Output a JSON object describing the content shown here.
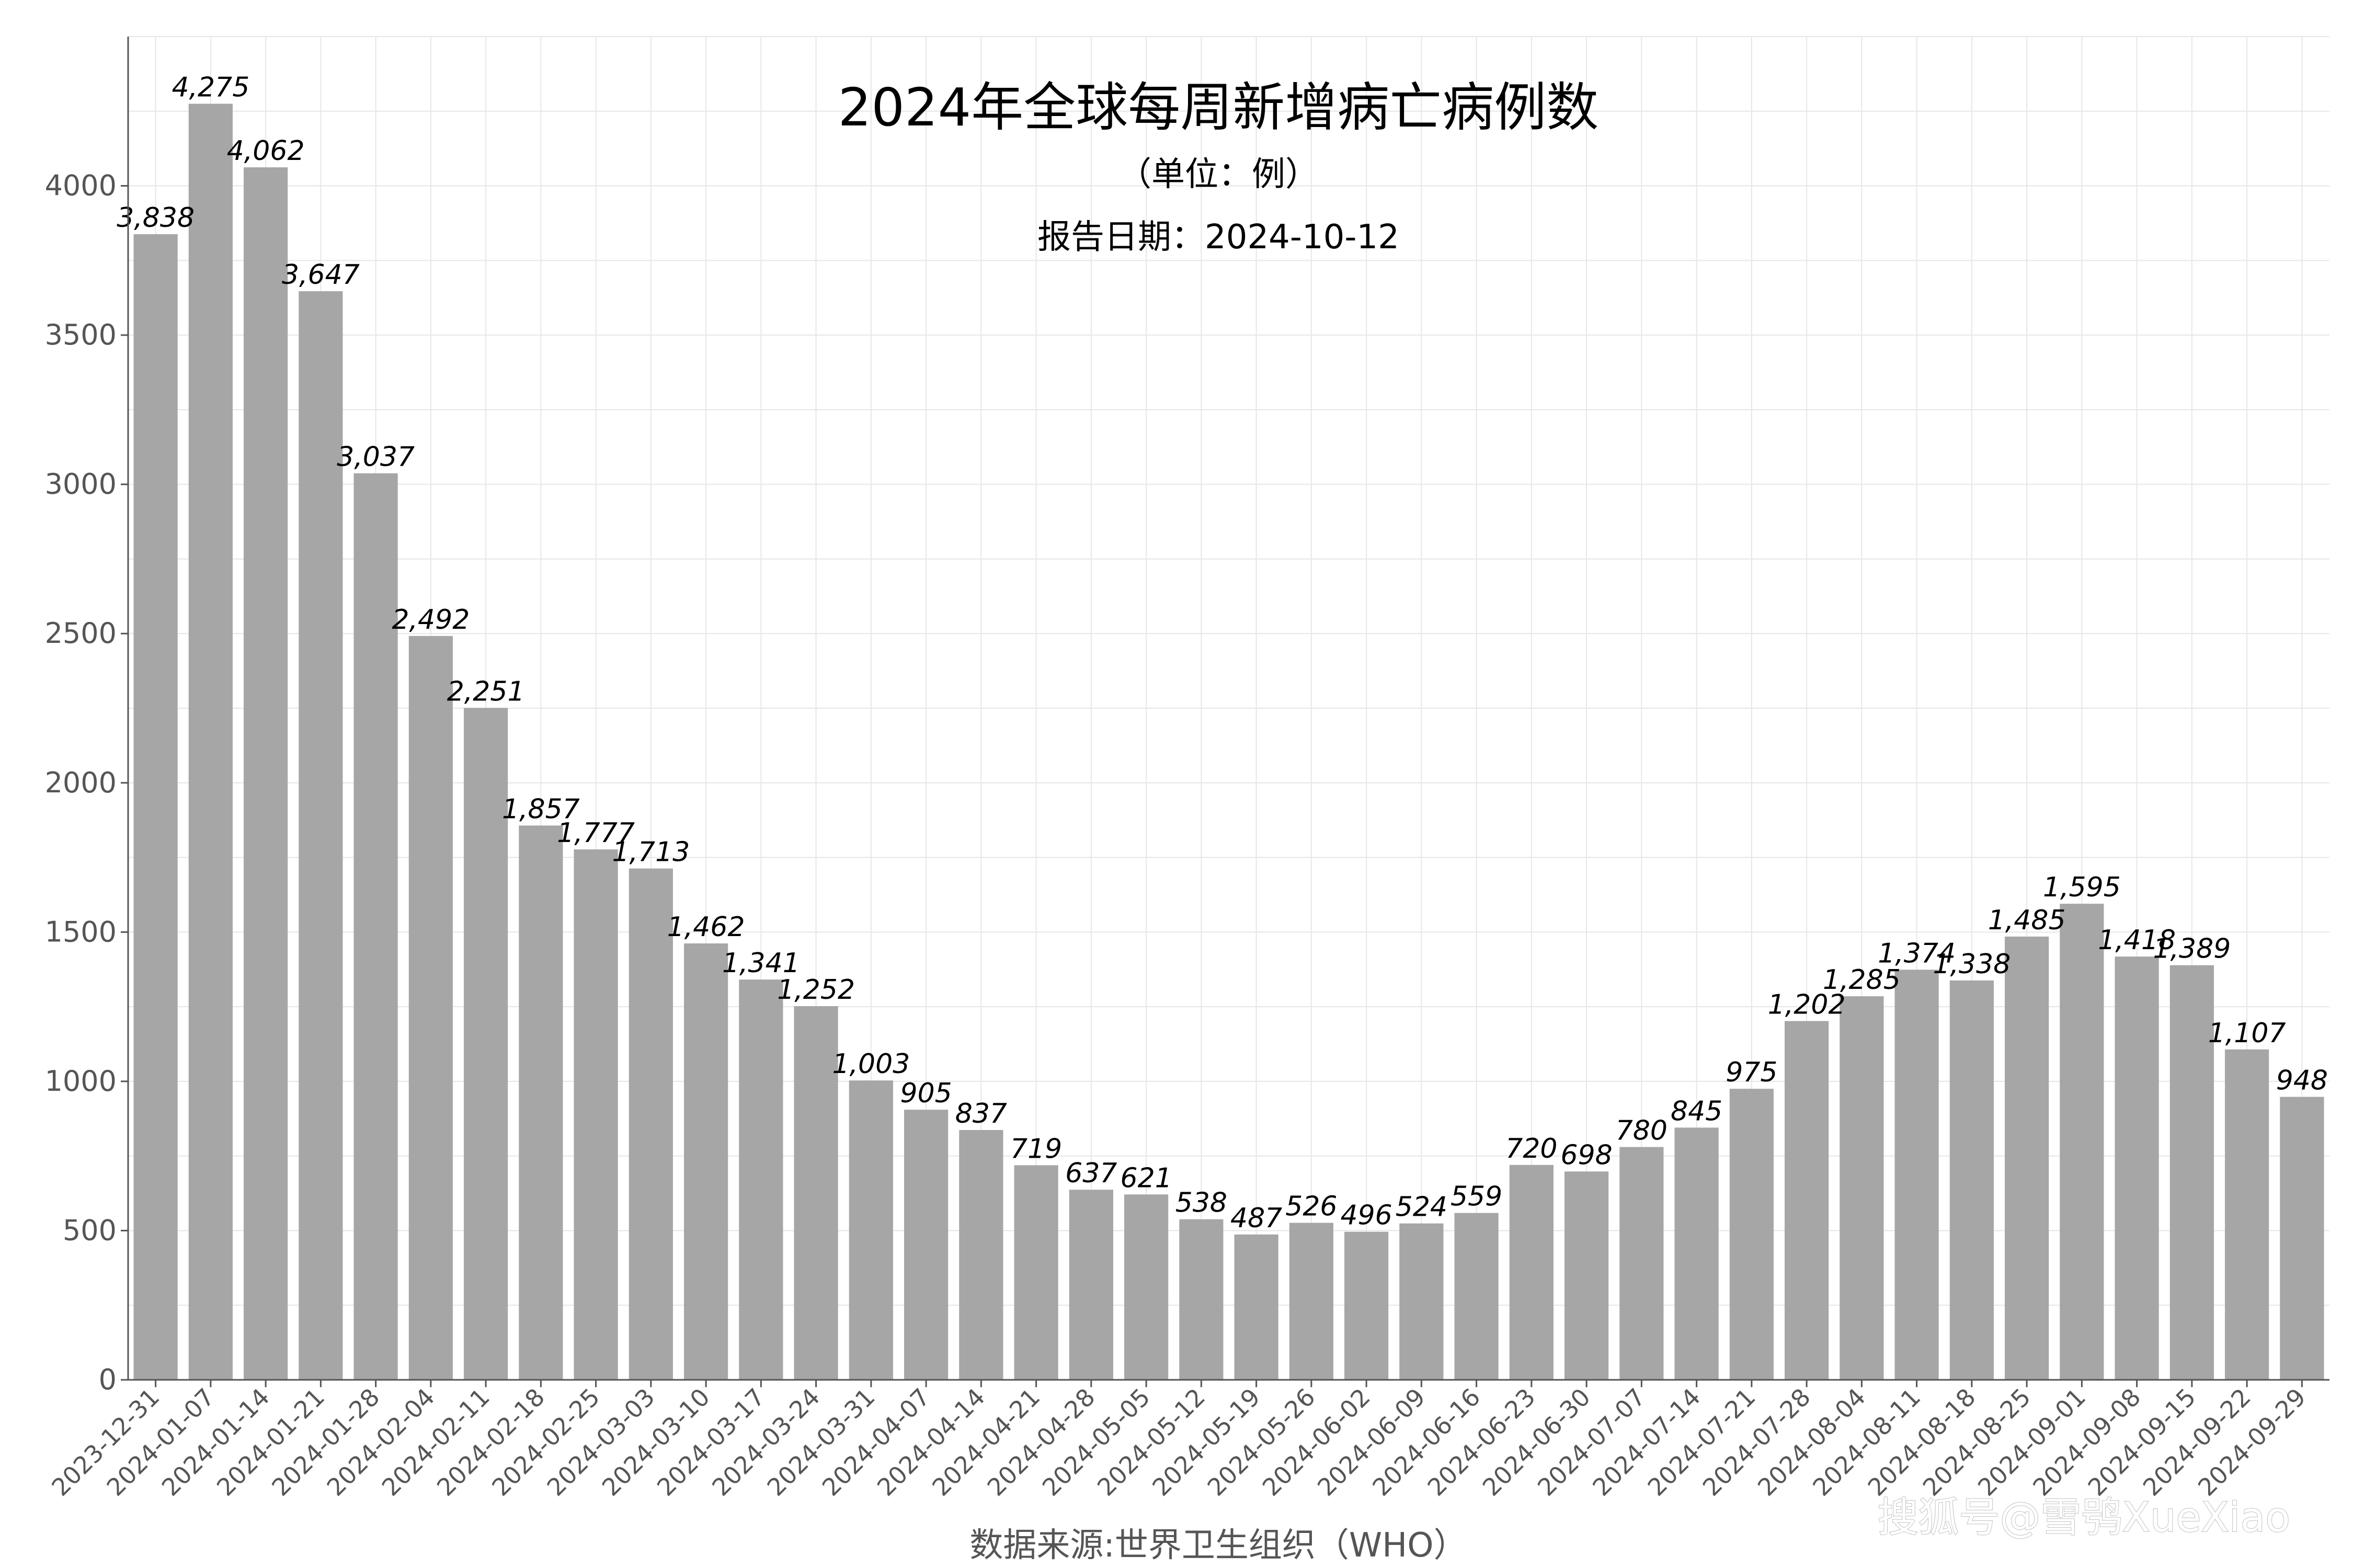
{
  "chart_data": {
    "type": "bar",
    "title": "2024年全球每周新增病亡病例数",
    "subtitle": "（单位：例）",
    "report_date": "报告日期：2024-10-12",
    "xlabel": "数据来源:世界卫生组织（WHO）",
    "ylabel": "",
    "ylim": [
      0,
      4500
    ],
    "yticks": [
      0,
      500,
      1000,
      1500,
      2000,
      2500,
      3000,
      3500,
      4000
    ],
    "grid": true,
    "bar_color": "#a6a6a6",
    "categories": [
      "2023-12-31",
      "2024-01-07",
      "2024-01-14",
      "2024-01-21",
      "2024-01-28",
      "2024-02-04",
      "2024-02-11",
      "2024-02-18",
      "2024-02-25",
      "2024-03-03",
      "2024-03-10",
      "2024-03-17",
      "2024-03-24",
      "2024-03-31",
      "2024-04-07",
      "2024-04-14",
      "2024-04-21",
      "2024-04-28",
      "2024-05-05",
      "2024-05-12",
      "2024-05-19",
      "2024-05-26",
      "2024-06-02",
      "2024-06-09",
      "2024-06-16",
      "2024-06-23",
      "2024-06-30",
      "2024-07-07",
      "2024-07-14",
      "2024-07-21",
      "2024-07-28",
      "2024-08-04",
      "2024-08-11",
      "2024-08-18",
      "2024-08-25",
      "2024-09-01",
      "2024-09-08",
      "2024-09-15",
      "2024-09-22",
      "2024-09-29"
    ],
    "values": [
      3838,
      4275,
      4062,
      3647,
      3037,
      2492,
      2251,
      1857,
      1777,
      1713,
      1462,
      1341,
      1252,
      1003,
      905,
      837,
      719,
      637,
      621,
      538,
      487,
      526,
      496,
      524,
      559,
      720,
      698,
      780,
      845,
      975,
      1202,
      1285,
      1374,
      1338,
      1485,
      1595,
      1418,
      1389,
      1107,
      948
    ],
    "value_labels": [
      "3,838",
      "4,275",
      "4,062",
      "3,647",
      "3,037",
      "2,492",
      "2,251",
      "1,857",
      "1,777",
      "1,713",
      "1,462",
      "1,341",
      "1,252",
      "1,003",
      "905",
      "837",
      "719",
      "637",
      "621",
      "538",
      "487",
      "526",
      "496",
      "524",
      "559",
      "720",
      "698",
      "780",
      "845",
      "975",
      "1,202",
      "1,285",
      "1,374",
      "1,338",
      "1,485",
      "1,595",
      "1,418",
      "1,389",
      "1,107",
      "948"
    ]
  },
  "watermark": "搜狐号@雪鸮XueXiao"
}
